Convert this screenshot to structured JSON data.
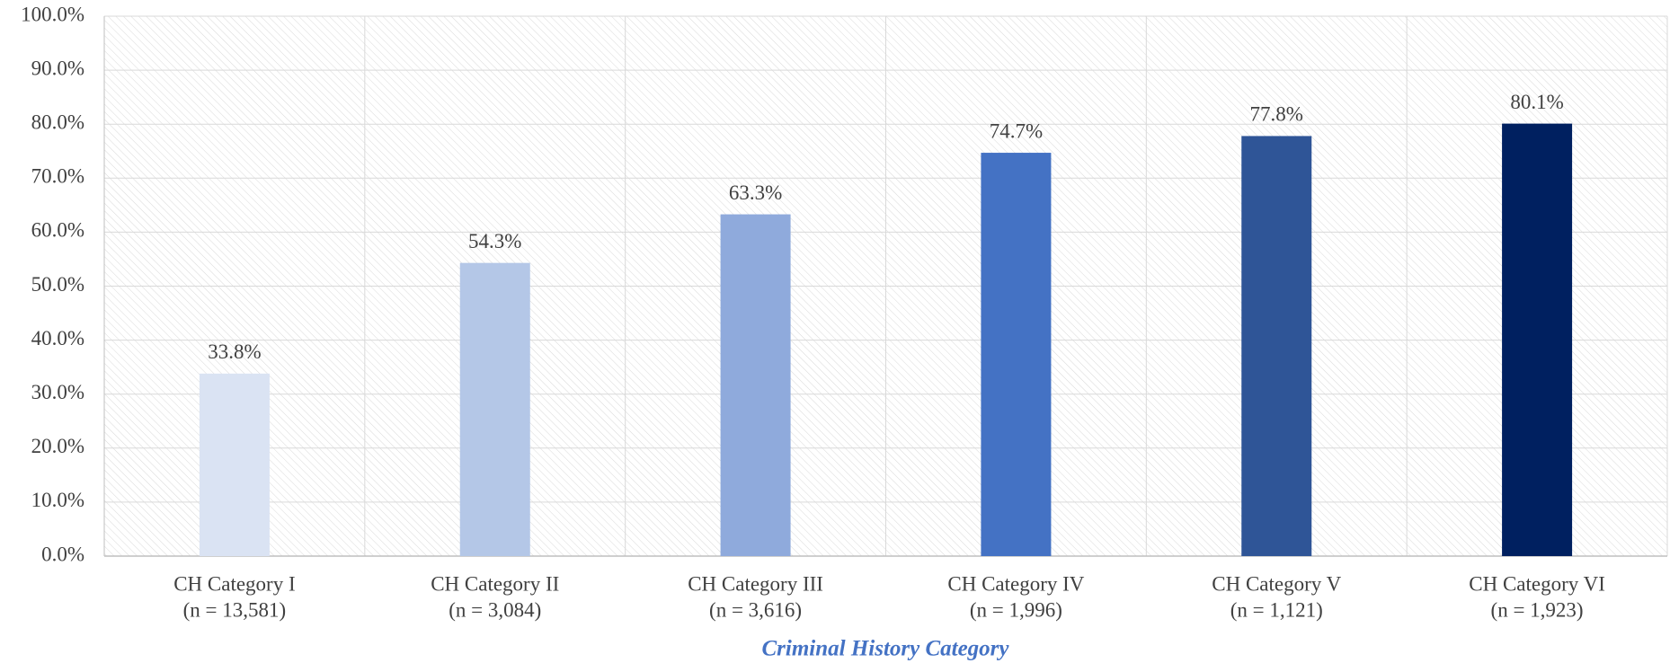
{
  "chart_data": {
    "type": "bar",
    "categories": [
      [
        "CH Category I",
        "(n = 13,581)"
      ],
      [
        "CH Category II",
        "(n = 3,084)"
      ],
      [
        "CH Category III",
        "(n = 3,616)"
      ],
      [
        "CH Category IV",
        "(n = 1,996)"
      ],
      [
        "CH Category V",
        "(n = 1,121)"
      ],
      [
        "CH Category VI",
        "(n = 1,923)"
      ]
    ],
    "values": [
      33.8,
      54.3,
      63.3,
      74.7,
      77.8,
      80.1
    ],
    "value_labels": [
      "33.8%",
      "54.3%",
      "63.3%",
      "74.7%",
      "77.8%",
      "80.1%"
    ],
    "colors": [
      "#dae3f3",
      "#b4c7e7",
      "#8faadc",
      "#4472c4",
      "#2f5597",
      "#002060"
    ],
    "xlabel": "Criminal History Category",
    "ylim": [
      0,
      100
    ],
    "yticks": [
      {
        "value": 0,
        "label": "0.0%"
      },
      {
        "value": 10,
        "label": "10.0%"
      },
      {
        "value": 20,
        "label": "20.0%"
      },
      {
        "value": 30,
        "label": "30.0%"
      },
      {
        "value": 40,
        "label": "40.0%"
      },
      {
        "value": 50,
        "label": "50.0%"
      },
      {
        "value": 60,
        "label": "60.0%"
      },
      {
        "value": 70,
        "label": "70.0%"
      },
      {
        "value": 80,
        "label": "80.0%"
      },
      {
        "value": 90,
        "label": "90.0%"
      },
      {
        "value": 100,
        "label": "100.0%"
      }
    ],
    "grid": true
  }
}
